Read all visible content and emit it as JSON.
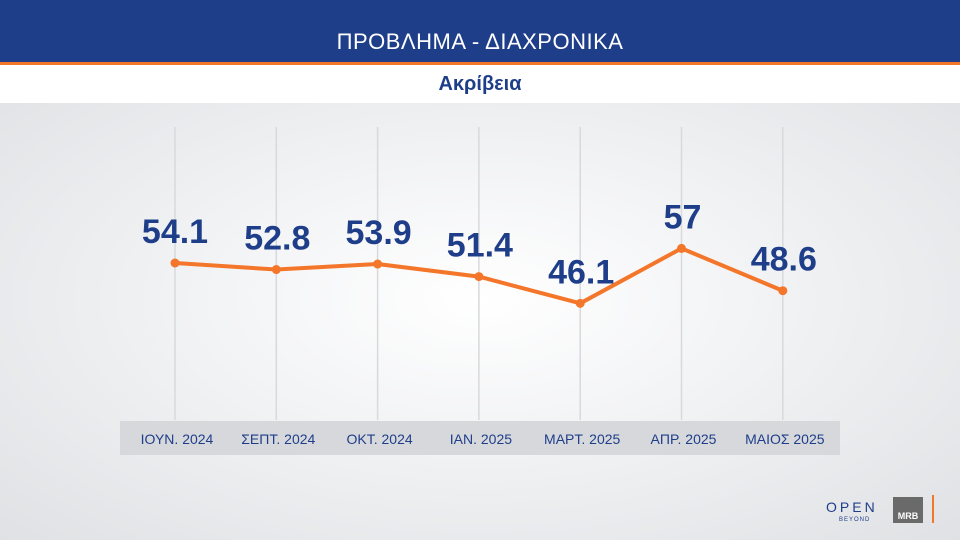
{
  "header": {
    "title": "ΠΡΟΒΛΗΜΑ - ΔΙΑΧΡΟΝΙΚΑ",
    "subtitle": "Ακρίβεια"
  },
  "colors": {
    "header_bg": "#1f3e8a",
    "accent": "#f4762a",
    "text": "#1f3e8a",
    "line": "#f4762a"
  },
  "chart_data": {
    "type": "line",
    "title": "ΠΡΟΒΛΗΜΑ - ΔΙΑΧΡΟΝΙΚΑ",
    "subtitle": "Ακρίβεια",
    "categories": [
      "ΙΟΥΝ. 2024",
      "ΣΕΠΤ. 2024",
      "ΟΚΤ. 2024",
      "ΙΑΝ. 2025",
      "ΜΑΡΤ. 2025",
      "ΑΠΡ. 2025",
      "ΜΑΙΟΣ 2025"
    ],
    "values": [
      54.1,
      52.8,
      53.9,
      51.4,
      46.1,
      57,
      48.6
    ],
    "value_labels": [
      "54.1",
      "52.8",
      "53.9",
      "51.4",
      "46.1",
      "57",
      "48.6"
    ],
    "grid": true,
    "data_labels": true
  },
  "logos": {
    "open": "OPEN",
    "open_sub": "BEYOND",
    "mrb": "MRB"
  }
}
